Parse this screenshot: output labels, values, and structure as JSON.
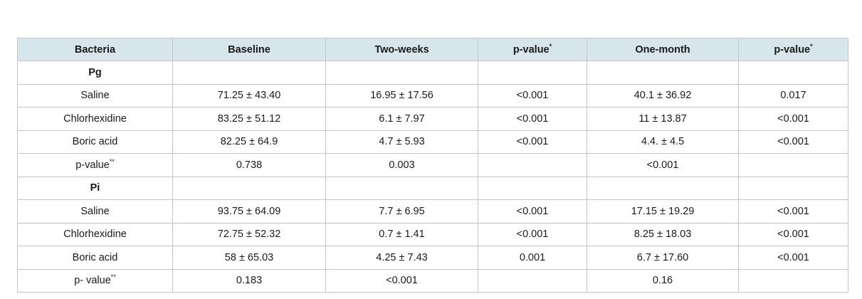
{
  "table": {
    "headers": [
      "Bacteria",
      "Baseline",
      "Two-weeks",
      "p-value*",
      "One-month",
      "p-value*"
    ],
    "rows": [
      {
        "type": "group",
        "cells": [
          "Pg",
          "",
          "",
          "",
          "",
          ""
        ]
      },
      {
        "type": "data",
        "cells": [
          "Saline",
          "71.25 ± 43.40",
          "16.95 ± 17.56",
          "<0.001",
          "40.1 ± 36.92",
          "0.017"
        ]
      },
      {
        "type": "data",
        "cells": [
          "Chlorhexidine",
          "83.25 ± 51.12",
          "6.1 ± 7.97",
          "<0.001",
          "11 ± 13.87",
          "<0.001"
        ]
      },
      {
        "type": "data",
        "cells": [
          "Boric acid",
          "82.25 ± 64.9",
          "4.7 ± 5.93",
          "<0.001",
          "4.4. ± 4.5",
          "<0.001"
        ]
      },
      {
        "type": "data",
        "cells": [
          "p-value**",
          "0.738",
          "0.003",
          "",
          "<0.001",
          ""
        ]
      },
      {
        "type": "group",
        "cells": [
          "Pi",
          "",
          "",
          "",
          "",
          ""
        ]
      },
      {
        "type": "data",
        "cells": [
          "Saline",
          "93.75 ± 64.09",
          "7.7 ± 6.95",
          "<0.001",
          "17.15 ± 19.29",
          "<0.001"
        ]
      },
      {
        "type": "data",
        "cells": [
          "Chlorhexidine",
          "72.75 ± 52.32",
          "0.7 ± 1.41",
          "<0.001",
          "8.25 ± 18.03",
          "<0.001"
        ]
      },
      {
        "type": "data",
        "cells": [
          "Boric acid",
          "58 ± 65.03",
          "4.25 ± 7.43",
          "0.001",
          "6.7 ± 17.60",
          "<0.001"
        ]
      },
      {
        "type": "data",
        "cells": [
          "p- value**",
          "0.183",
          "<0.001",
          "",
          "0.16",
          ""
        ]
      }
    ]
  },
  "colors": {
    "header_background": "#d6e6ea",
    "border": "#c4c4c4"
  }
}
